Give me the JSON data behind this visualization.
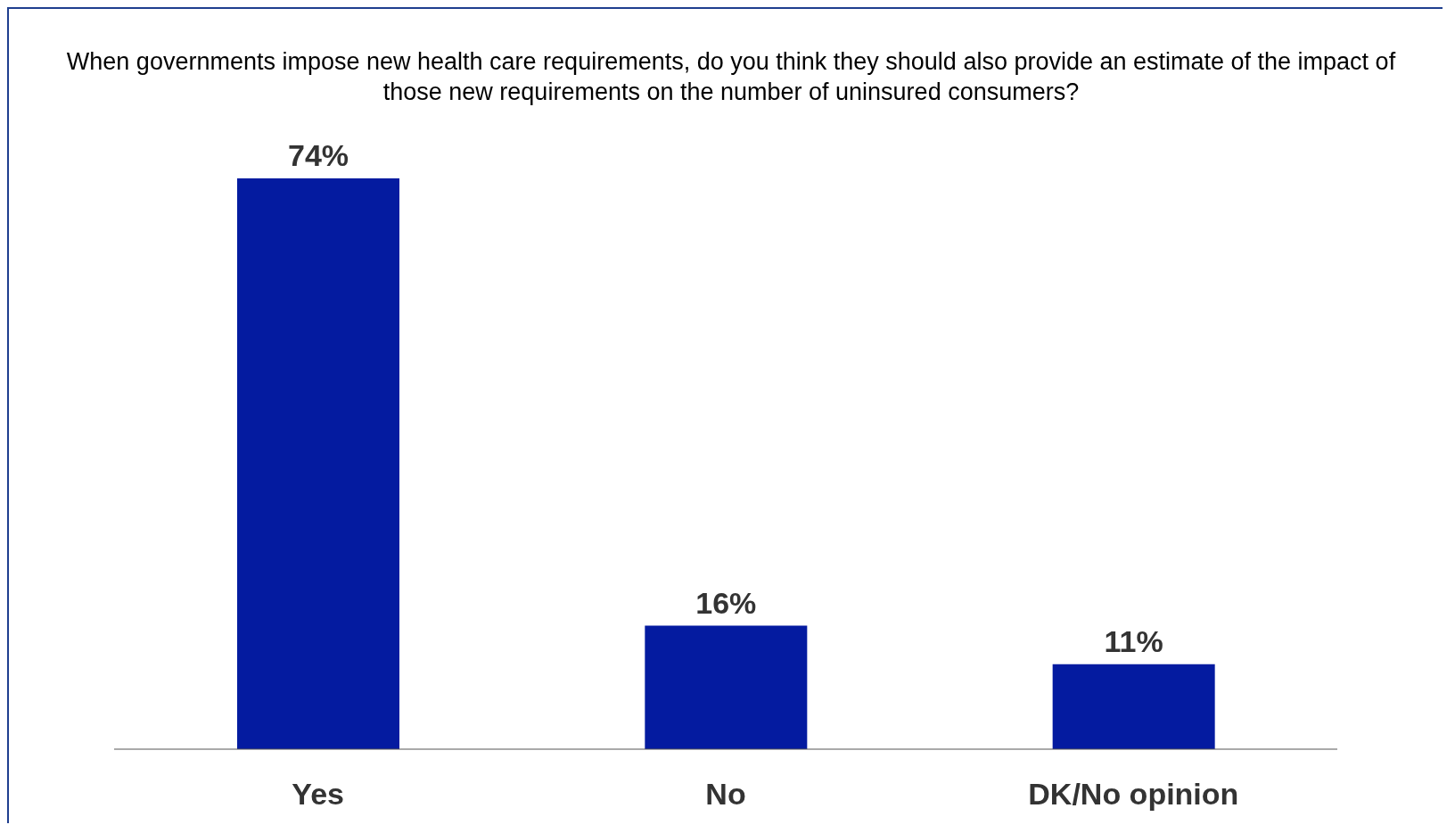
{
  "chart_data": {
    "type": "bar",
    "title": "When governments impose new health care requirements, do you think they should also provide an estimate of the impact of those new requirements on the number of uninsured consumers?",
    "categories": [
      "Yes",
      "No",
      "DK/No opinion"
    ],
    "values": [
      74,
      16,
      11
    ],
    "value_labels": [
      "74%",
      "16%",
      "11%"
    ],
    "color": "#041ba0",
    "grid": false,
    "legend": false
  }
}
